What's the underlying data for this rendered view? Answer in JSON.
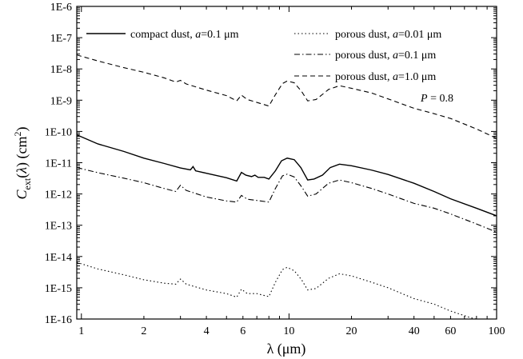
{
  "chart_data": {
    "type": "line",
    "title": "",
    "xlabel": "λ (μm)",
    "ylabel": "C_ext(λ) (cm²)",
    "x_scale": "log",
    "y_scale": "log",
    "xlim": [
      0.95,
      100
    ],
    "ylim": [
      1e-16,
      1e-06
    ],
    "grid": false,
    "legend_placement": "top",
    "x_tick_labels": [
      {
        "value": 1,
        "label": "1"
      },
      {
        "value": 2,
        "label": "2"
      },
      {
        "value": 4,
        "label": "4"
      },
      {
        "value": 6,
        "label": "6"
      },
      {
        "value": 10,
        "label": "10"
      },
      {
        "value": 20,
        "label": "20"
      },
      {
        "value": 40,
        "label": "40"
      },
      {
        "value": 60,
        "label": "60"
      },
      {
        "value": 100,
        "label": "100"
      }
    ],
    "y_tick_labels": [
      {
        "value": 1e-16,
        "label": "1E-16"
      },
      {
        "value": 1e-15,
        "label": "1E-15"
      },
      {
        "value": 1e-14,
        "label": "1E-14"
      },
      {
        "value": 1e-13,
        "label": "1E-13"
      },
      {
        "value": 1e-12,
        "label": "1E-12"
      },
      {
        "value": 1e-11,
        "label": "1E-11"
      },
      {
        "value": 1e-10,
        "label": "1E-10"
      },
      {
        "value": 1e-09,
        "label": "1E-9"
      },
      {
        "value": 1e-08,
        "label": "1E-8"
      },
      {
        "value": 1e-07,
        "label": "1E-7"
      },
      {
        "value": 1e-06,
        "label": "1E-6"
      }
    ],
    "annotation": "P = 0.8",
    "series": [
      {
        "name": "compact dust, a=0.1 μm",
        "style": "solid",
        "points": [
          [
            0.95,
            7.8e-11
          ],
          [
            1.2,
            4e-11
          ],
          [
            1.6,
            2.3e-11
          ],
          [
            2.0,
            1.4e-11
          ],
          [
            2.5,
            9.5e-12
          ],
          [
            3.0,
            6.8e-12
          ],
          [
            3.35,
            5.9e-12
          ],
          [
            3.45,
            7.5e-12
          ],
          [
            3.55,
            5.5e-12
          ],
          [
            4.0,
            4.6e-12
          ],
          [
            5.0,
            3.3e-12
          ],
          [
            5.6,
            2.6e-12
          ],
          [
            5.9,
            4.9e-12
          ],
          [
            6.2,
            4e-12
          ],
          [
            6.6,
            3.6e-12
          ],
          [
            6.85,
            4e-12
          ],
          [
            7.1,
            3.4e-12
          ],
          [
            7.6,
            3.4e-12
          ],
          [
            8.0,
            3e-12
          ],
          [
            8.6,
            5.5e-12
          ],
          [
            9.2,
            1.15e-11
          ],
          [
            9.8,
            1.4e-11
          ],
          [
            10.6,
            1.25e-11
          ],
          [
            11.4,
            7e-12
          ],
          [
            12.3,
            2.8e-12
          ],
          [
            13.2,
            3e-12
          ],
          [
            14.5,
            4e-12
          ],
          [
            15.8,
            7e-12
          ],
          [
            17.5,
            9e-12
          ],
          [
            20,
            8e-12
          ],
          [
            25,
            5.8e-12
          ],
          [
            30,
            4.2e-12
          ],
          [
            40,
            2.2e-12
          ],
          [
            50,
            1.2e-12
          ],
          [
            60,
            7e-13
          ],
          [
            80,
            3.5e-13
          ],
          [
            100,
            2e-13
          ]
        ]
      },
      {
        "name": "porous dust, a=0.01 μm",
        "style": "dotted",
        "points": [
          [
            0.95,
            6.5e-15
          ],
          [
            1.2,
            4e-15
          ],
          [
            1.6,
            2.6e-15
          ],
          [
            2.0,
            1.8e-15
          ],
          [
            2.5,
            1.4e-15
          ],
          [
            2.85,
            1.3e-15
          ],
          [
            3.0,
            1.9e-15
          ],
          [
            3.2,
            1.3e-15
          ],
          [
            4.0,
            8.5e-16
          ],
          [
            5.0,
            6.5e-16
          ],
          [
            5.6,
            5e-16
          ],
          [
            5.9,
            9e-16
          ],
          [
            6.3,
            6.5e-16
          ],
          [
            7.0,
            6.5e-16
          ],
          [
            8.0,
            5.2e-16
          ],
          [
            8.6,
            1.5e-15
          ],
          [
            9.3,
            3.8e-15
          ],
          [
            9.8,
            4.5e-15
          ],
          [
            10.6,
            3.5e-15
          ],
          [
            11.5,
            1.8e-15
          ],
          [
            12.3,
            8.5e-16
          ],
          [
            13.5,
            9.5e-16
          ],
          [
            15.5,
            2e-15
          ],
          [
            17.5,
            2.8e-15
          ],
          [
            20,
            2.4e-15
          ],
          [
            25,
            1.5e-15
          ],
          [
            30,
            1e-15
          ],
          [
            40,
            4.5e-16
          ],
          [
            50,
            3e-16
          ],
          [
            60,
            1.8e-16
          ],
          [
            75,
            1.1e-16
          ],
          [
            85,
            9e-17
          ]
        ]
      },
      {
        "name": "porous dust, a=0.1 μm",
        "style": "dashdot",
        "points": [
          [
            0.95,
            7e-12
          ],
          [
            1.2,
            4.8e-12
          ],
          [
            1.6,
            3.2e-12
          ],
          [
            2.0,
            2.3e-12
          ],
          [
            2.5,
            1.5e-12
          ],
          [
            2.85,
            1.2e-12
          ],
          [
            3.0,
            1.9e-12
          ],
          [
            3.2,
            1.3e-12
          ],
          [
            4.0,
            8e-13
          ],
          [
            5.0,
            6e-13
          ],
          [
            5.6,
            5.5e-13
          ],
          [
            5.9,
            9e-13
          ],
          [
            6.3,
            6.8e-13
          ],
          [
            7.0,
            6.2e-13
          ],
          [
            8.0,
            5.5e-13
          ],
          [
            8.6,
            1.5e-12
          ],
          [
            9.3,
            3.8e-12
          ],
          [
            9.8,
            4.3e-12
          ],
          [
            10.6,
            3.5e-12
          ],
          [
            11.5,
            1.7e-12
          ],
          [
            12.3,
            8.5e-13
          ],
          [
            13.5,
            1e-12
          ],
          [
            15.5,
            2.2e-12
          ],
          [
            17.5,
            2.8e-12
          ],
          [
            20,
            2.3e-12
          ],
          [
            25,
            1.5e-12
          ],
          [
            30,
            1e-12
          ],
          [
            40,
            5e-13
          ],
          [
            50,
            3.5e-13
          ],
          [
            60,
            2.3e-13
          ],
          [
            80,
            1.1e-13
          ],
          [
            100,
            6e-14
          ]
        ]
      },
      {
        "name": "porous dust, a=1.0 μm",
        "style": "dashed",
        "points": [
          [
            0.95,
            2.8e-08
          ],
          [
            1.2,
            1.8e-08
          ],
          [
            1.6,
            1.1e-08
          ],
          [
            2.0,
            7.8e-09
          ],
          [
            2.5,
            5.2e-09
          ],
          [
            2.85,
            3.8e-09
          ],
          [
            3.0,
            4.3e-09
          ],
          [
            3.2,
            3.3e-09
          ],
          [
            4.0,
            2.1e-09
          ],
          [
            5.0,
            1.4e-09
          ],
          [
            5.6,
            9.5e-10
          ],
          [
            5.9,
            1.45e-09
          ],
          [
            6.3,
            1.05e-09
          ],
          [
            7.0,
            8.5e-10
          ],
          [
            8.0,
            6.5e-10
          ],
          [
            8.6,
            1.5e-09
          ],
          [
            9.3,
            3.4e-09
          ],
          [
            9.8,
            4.1e-09
          ],
          [
            10.6,
            3.6e-09
          ],
          [
            11.5,
            1.9e-09
          ],
          [
            12.3,
            9.5e-10
          ],
          [
            13.5,
            1.05e-09
          ],
          [
            15.5,
            2.2e-09
          ],
          [
            17.5,
            2.9e-09
          ],
          [
            20,
            2.4e-09
          ],
          [
            25,
            1.7e-09
          ],
          [
            30,
            1.1e-09
          ],
          [
            40,
            5.5e-10
          ],
          [
            50,
            3.7e-10
          ],
          [
            60,
            2.6e-10
          ],
          [
            80,
            1.2e-10
          ],
          [
            100,
            6e-11
          ]
        ]
      }
    ]
  }
}
